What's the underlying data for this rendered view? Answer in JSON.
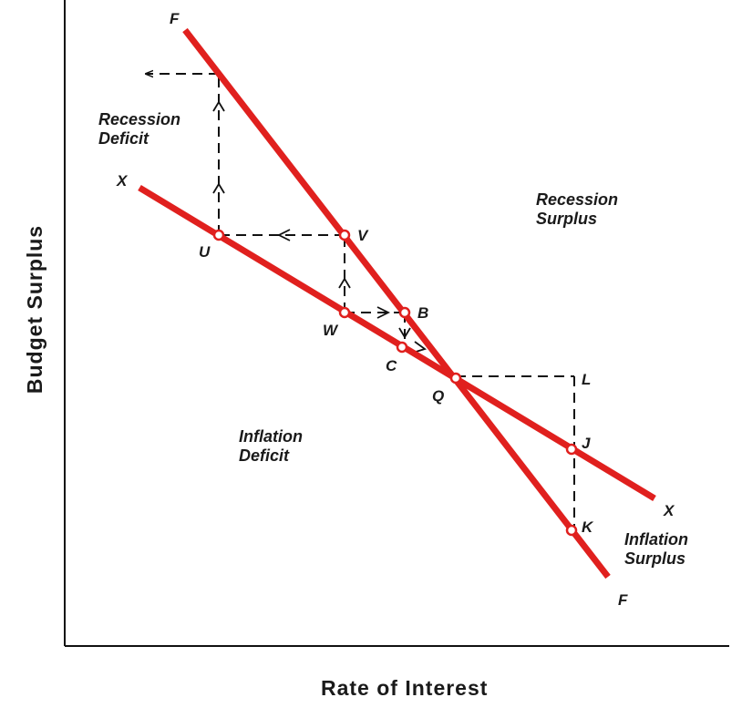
{
  "axes": {
    "x_title": "Rate of Interest",
    "y_title": "Budget Surplus"
  },
  "regions": {
    "recession_deficit": [
      "Recession",
      "Deficit"
    ],
    "recession_surplus": [
      "Recession",
      "Surplus"
    ],
    "inflation_deficit": [
      "Inflation",
      "Deficit"
    ],
    "inflation_surplus": [
      "Inflation",
      "Surplus"
    ]
  },
  "lines": {
    "color": "#e0201e",
    "labels": {
      "FF": "F",
      "XX": "X"
    }
  },
  "points": [
    "U",
    "V",
    "W",
    "B",
    "C",
    "Q",
    "L",
    "J",
    "K"
  ]
}
